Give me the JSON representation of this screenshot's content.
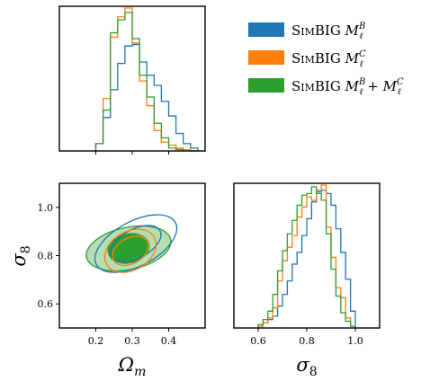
{
  "chart_data": {
    "type": "corner",
    "parameters": [
      "Omega_m",
      "sigma_8"
    ],
    "labels": {
      "omega_m": "Ω",
      "omega_m_sub": "m",
      "sigma_8": "σ",
      "sigma_8_sub": "8"
    },
    "xlim_omega_m": [
      0.1,
      0.5
    ],
    "ylim_sigma_8": [
      0.5,
      1.1
    ],
    "xlim_sigma_8": [
      0.5,
      1.1
    ],
    "omega_m_ticks": [
      "0.2",
      "0.3",
      "0.4"
    ],
    "omega_m_tick_values": [
      0.2,
      0.3,
      0.4
    ],
    "sigma_8_ticks": [
      "0.6",
      "0.8",
      "1.0"
    ],
    "sigma_8_tick_values": [
      0.6,
      0.8,
      1.0
    ],
    "legend_placement": "top-right",
    "series": [
      {
        "name": "SimBIG M_ℓ^B",
        "legend": {
          "prefix_big": "S",
          "prefix_small": "IM",
          "main": "BIG",
          "M": "M",
          "sub": "ℓ",
          "sup": "B"
        },
        "color": "#1f77b4",
        "omega_m_hist": {
          "edges": [
            0.2,
            0.22,
            0.24,
            0.26,
            0.28,
            0.3,
            0.32,
            0.34,
            0.36,
            0.38,
            0.4,
            0.42,
            0.44,
            0.46,
            0.48
          ],
          "density": [
            0.5,
            2.3,
            4.2,
            6.0,
            7.2,
            7.3,
            6.1,
            5.2,
            4.5,
            3.4,
            2.4,
            1.2,
            0.5,
            0.2
          ]
        },
        "sigma_8_hist": {
          "edges": [
            0.6,
            0.62,
            0.64,
            0.66,
            0.68,
            0.7,
            0.72,
            0.74,
            0.76,
            0.78,
            0.8,
            0.82,
            0.84,
            0.86,
            0.88,
            0.9,
            0.92,
            0.94,
            0.96,
            0.98,
            1.0
          ],
          "density": [
            0.1,
            0.3,
            0.5,
            0.7,
            1.3,
            2.0,
            2.8,
            3.8,
            4.5,
            5.5,
            6.5,
            7.5,
            8.1,
            8.2,
            8.0,
            7.3,
            5.9,
            4.5,
            2.9,
            1.0
          ]
        },
        "contour_center": [
          0.31,
          0.85
        ],
        "contour_68": {
          "rx": 0.075,
          "ry": 0.12,
          "tilt": 28
        },
        "contour_95": {
          "rx": 0.123,
          "ry": 0.185,
          "tilt": 28
        }
      },
      {
        "name": "SimBIG M_ℓ^C",
        "legend": {
          "prefix_big": "S",
          "prefix_small": "IM",
          "main": "BIG",
          "M": "M",
          "sub": "ℓ",
          "sup": "C"
        },
        "color": "#ff7f0e",
        "omega_m_hist": {
          "edges": [
            0.2,
            0.22,
            0.24,
            0.26,
            0.28,
            0.3,
            0.32,
            0.34,
            0.36,
            0.38,
            0.4,
            0.42,
            0.44,
            0.46,
            0.48
          ],
          "density": [
            0.5,
            3.6,
            7.8,
            9.2,
            9.8,
            7.4,
            4.8,
            3.1,
            1.4,
            0.6,
            0.4,
            0.2,
            0.1,
            0.0
          ]
        },
        "sigma_8_hist": {
          "edges": [
            0.6,
            0.62,
            0.64,
            0.66,
            0.68,
            0.7,
            0.72,
            0.74,
            0.76,
            0.78,
            0.8,
            0.82,
            0.84,
            0.86,
            0.88,
            0.9,
            0.92,
            0.94,
            0.96,
            0.98,
            1.0
          ],
          "density": [
            0.1,
            0.3,
            0.6,
            1.2,
            2.8,
            4.0,
            4.8,
            5.5,
            6.6,
            7.2,
            7.8,
            7.6,
            8.2,
            8.5,
            6.0,
            4.2,
            2.4,
            1.8,
            0.6,
            0.1
          ]
        },
        "contour_center": [
          0.295,
          0.82
        ],
        "contour_68": {
          "rx": 0.053,
          "ry": 0.106,
          "tilt": 30
        },
        "contour_95": {
          "rx": 0.075,
          "ry": 0.16,
          "tilt": 30
        }
      },
      {
        "name": "SimBIG M_ℓ^B + M_ℓ^C",
        "legend": {
          "prefix_big": "S",
          "prefix_small": "IM",
          "main": "BIG",
          "M": "M",
          "sub": "ℓ",
          "sup": "B",
          "plus": "+",
          "M2": "M",
          "sub2": "ℓ",
          "sup2": "C"
        },
        "color": "#2ca02c",
        "omega_m_hist": {
          "edges": [
            0.2,
            0.22,
            0.24,
            0.26,
            0.28,
            0.3,
            0.32,
            0.34,
            0.36,
            0.38,
            0.4,
            0.42,
            0.44,
            0.46,
            0.48
          ],
          "density": [
            0.5,
            2.8,
            8.1,
            9.0,
            9.5,
            7.7,
            5.2,
            3.7,
            1.9,
            0.9,
            0.2,
            0.1,
            0.0,
            0.0
          ]
        },
        "sigma_8_hist": {
          "edges": [
            0.6,
            0.62,
            0.64,
            0.66,
            0.68,
            0.7,
            0.72,
            0.74,
            0.76,
            0.78,
            0.8,
            0.82,
            0.84,
            0.86,
            0.88,
            0.9,
            0.92,
            0.94,
            0.96,
            0.98,
            1.0
          ],
          "density": [
            0.2,
            0.5,
            1.0,
            2.0,
            3.4,
            4.6,
            5.6,
            6.4,
            7.3,
            7.9,
            8.0,
            8.4,
            8.0,
            7.6,
            5.6,
            3.5,
            1.9,
            0.9,
            0.4,
            0.1
          ]
        },
        "contour_center": [
          0.29,
          0.83
        ],
        "contour_68": {
          "rx": 0.057,
          "ry": 0.12,
          "tilt": 12
        },
        "contour_95": {
          "rx": 0.118,
          "ry": 0.175,
          "tilt": 12
        }
      }
    ]
  }
}
